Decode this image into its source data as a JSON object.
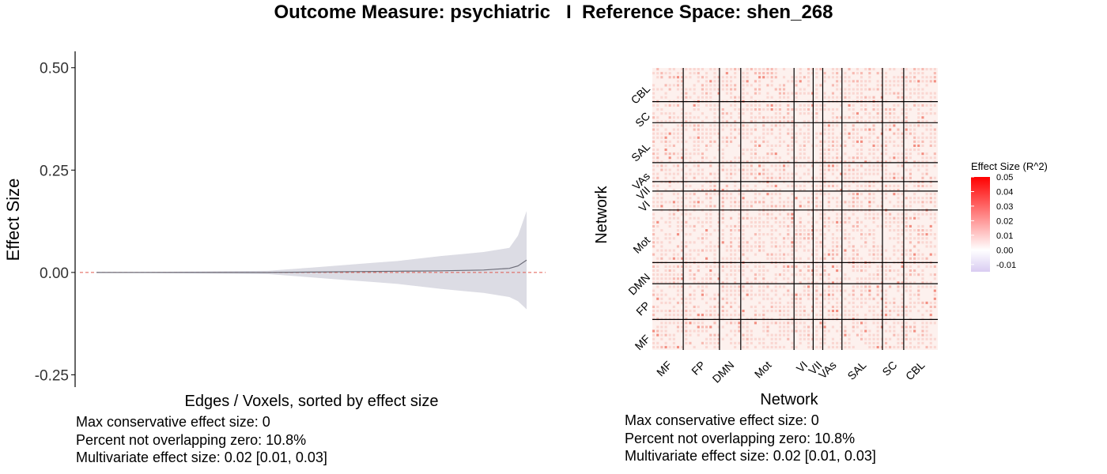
{
  "title": "Outcome Measure: psychiatric   I  Reference Space: shen_268",
  "left_stats": [
    "Max conservative effect size: 0",
    "Percent not overlapping zero: 10.8%",
    "Multivariate effect size: 0.02 [0.01, 0.03]"
  ],
  "right_stats": [
    "Max conservative effect size: 0",
    "Percent not overlapping zero: 10.8%",
    "Multivariate effect size: 0.02 [0.01, 0.03]"
  ],
  "chart_data": [
    {
      "type": "area",
      "xlabel": "Edges / Voxels, sorted by effect size",
      "ylabel": "Effect Size",
      "ylim": [
        -0.28,
        0.54
      ],
      "y_ticks": [
        0.5,
        0.25,
        0.0,
        -0.25
      ],
      "y_tick_labels": [
        "0.50",
        "0.25",
        "0.00",
        "-0.25"
      ],
      "reference_line": {
        "y": 0,
        "style": "dashed",
        "color": "#e05a4f"
      },
      "series": [
        {
          "x": [
            0,
            0.1,
            0.2,
            0.3,
            0.4,
            0.45,
            0.5,
            0.55,
            0.6,
            0.65,
            0.7,
            0.75,
            0.8,
            0.85,
            0.9,
            0.93,
            0.96,
            0.98,
            1.0
          ],
          "estimate": [
            0,
            0,
            0,
            0,
            0,
            0.0005,
            0.001,
            0.0015,
            0.002,
            0.0025,
            0.003,
            0.0035,
            0.004,
            0.005,
            0.006,
            0.008,
            0.01,
            0.016,
            0.03
          ],
          "lower": [
            0,
            -0.001,
            -0.002,
            -0.003,
            -0.004,
            -0.008,
            -0.012,
            -0.016,
            -0.02,
            -0.024,
            -0.028,
            -0.034,
            -0.04,
            -0.045,
            -0.05,
            -0.055,
            -0.06,
            -0.07,
            -0.09
          ],
          "upper": [
            0,
            0.001,
            0.002,
            0.003,
            0.004,
            0.008,
            0.012,
            0.016,
            0.02,
            0.024,
            0.028,
            0.034,
            0.04,
            0.045,
            0.05,
            0.055,
            0.06,
            0.09,
            0.15
          ]
        }
      ],
      "colors": {
        "band": "#dcdce4",
        "line": "#6c6c78"
      },
      "grid": false
    },
    {
      "type": "heatmap",
      "xlabel": "Network",
      "ylabel": "Network",
      "networks": [
        "MF",
        "FP",
        "DMN",
        "Mot",
        "VI",
        "VII",
        "VAs",
        "SAL",
        "SC",
        "CBL"
      ],
      "network_sizes": [
        29,
        34,
        20,
        50,
        18,
        9,
        18,
        38,
        20,
        32
      ],
      "legend": {
        "title": "Effect Size (R^2)",
        "ticks": [
          "0.05",
          "0.04",
          "0.03",
          "0.02",
          "0.01",
          "0.00",
          "-0.01"
        ],
        "range": [
          -0.015,
          0.05
        ],
        "colors": {
          "low": "#d9ccf2",
          "mid": "#ffffff",
          "high": "#ff0000"
        },
        "placement": "right"
      }
    }
  ]
}
